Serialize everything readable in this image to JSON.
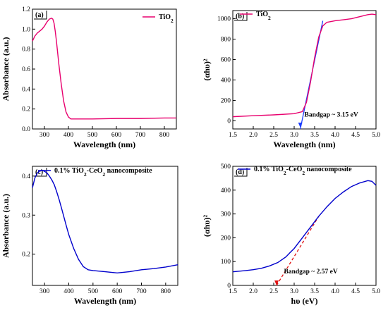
{
  "chart_data": [
    {
      "panel": "(a)",
      "type": "line",
      "xlabel": "Wavelength (nm)",
      "ylabel": "Absorbance (a.u.)",
      "xlim": [
        250,
        850
      ],
      "ylim": [
        0.0,
        1.2
      ],
      "xticks": [
        "300",
        "400",
        "500",
        "600",
        "700",
        "800"
      ],
      "yticks": [
        "0.0",
        "0.2",
        "0.4",
        "0.6",
        "0.8",
        "1.0",
        "1.2"
      ],
      "legend": "top-right",
      "series": [
        {
          "name": "TiO₂",
          "color": "#e8006e",
          "x": [
            250,
            260,
            270,
            280,
            290,
            300,
            310,
            320,
            330,
            335,
            340,
            345,
            350,
            360,
            370,
            380,
            390,
            400,
            410,
            420,
            440,
            460,
            500,
            600,
            700,
            800,
            850
          ],
          "y": [
            0.88,
            0.93,
            0.96,
            0.98,
            1.0,
            1.03,
            1.07,
            1.1,
            1.11,
            1.1,
            1.06,
            0.98,
            0.88,
            0.65,
            0.45,
            0.28,
            0.17,
            0.12,
            0.1,
            0.1,
            0.1,
            0.1,
            0.1,
            0.105,
            0.105,
            0.11,
            0.11
          ]
        }
      ]
    },
    {
      "panel": "(b)",
      "type": "line",
      "xlabel": "Wavelength (nm)",
      "ylabel": "(αhυ)²",
      "xlim": [
        1.5,
        5.0
      ],
      "ylim": [
        -80,
        1080
      ],
      "xticks": [
        "1.5",
        "2.0",
        "2.5",
        "3.0",
        "3.5",
        "4.0",
        "4.5",
        "5.0"
      ],
      "yticks": [
        "0",
        "200",
        "400",
        "600",
        "800",
        "1000"
      ],
      "legend": "top-left",
      "annotation": "Bandgap ~ 3.15 eV",
      "tangent": {
        "x": [
          3.15,
          3.7
        ],
        "y": [
          -80,
          980
        ]
      },
      "series": [
        {
          "name": "TiO₂",
          "color": "#e8006e",
          "x": [
            1.5,
            2.0,
            2.5,
            3.0,
            3.2,
            3.3,
            3.4,
            3.5,
            3.6,
            3.7,
            3.8,
            4.0,
            4.2,
            4.4,
            4.6,
            4.8,
            4.9,
            5.0
          ],
          "y": [
            40,
            50,
            58,
            70,
            90,
            180,
            380,
            620,
            820,
            930,
            965,
            980,
            990,
            1000,
            1020,
            1040,
            1045,
            1040
          ]
        }
      ]
    },
    {
      "panel": "(c)",
      "type": "line",
      "xlabel": "Wavelength (nm)",
      "ylabel": "Absorbance (a.u.)",
      "xlim": [
        250,
        850
      ],
      "ylim": [
        0.12,
        0.425
      ],
      "xticks": [
        "300",
        "400",
        "500",
        "600",
        "700",
        "800"
      ],
      "yticks": [
        "0.2",
        "0.3",
        "0.4"
      ],
      "legend": "top-left",
      "series": [
        {
          "name": "0.1% TiO₂-CeO₂ nanocomposite",
          "color": "#0000cc",
          "x": [
            250,
            260,
            270,
            280,
            290,
            300,
            310,
            320,
            330,
            340,
            350,
            360,
            370,
            380,
            390,
            400,
            420,
            440,
            460,
            480,
            500,
            550,
            600,
            650,
            700,
            750,
            800,
            850
          ],
          "y": [
            0.37,
            0.395,
            0.408,
            0.413,
            0.415,
            0.412,
            0.408,
            0.4,
            0.39,
            0.378,
            0.36,
            0.34,
            0.318,
            0.295,
            0.272,
            0.25,
            0.215,
            0.187,
            0.168,
            0.16,
            0.158,
            0.155,
            0.152,
            0.155,
            0.16,
            0.163,
            0.167,
            0.173
          ]
        }
      ]
    },
    {
      "panel": "(d)",
      "type": "line",
      "xlabel": "hυ (eV)",
      "ylabel": "(αhυ)²",
      "xlim": [
        1.5,
        5.0
      ],
      "ylim": [
        0,
        500
      ],
      "xticks": [
        "1.5",
        "2.0",
        "2.5",
        "3.0",
        "3.5",
        "4.0",
        "4.5",
        "5.0"
      ],
      "yticks": [
        "0",
        "100",
        "200",
        "300",
        "400",
        "500"
      ],
      "legend": "top-left",
      "annotation": "Bandgap ~ 2.57 eV",
      "tangent": {
        "x": [
          2.57,
          3.6
        ],
        "y": [
          0,
          290
        ]
      },
      "series": [
        {
          "name": "0.1% TiO₂-CeO₂ nanocomposite",
          "color": "#0000cc",
          "x": [
            1.5,
            1.8,
            2.0,
            2.2,
            2.4,
            2.6,
            2.8,
            2.9,
            3.0,
            3.2,
            3.4,
            3.6,
            3.8,
            4.0,
            4.2,
            4.4,
            4.6,
            4.8,
            4.9,
            5.0
          ],
          "y": [
            57,
            62,
            66,
            72,
            82,
            96,
            120,
            138,
            155,
            200,
            245,
            290,
            330,
            365,
            392,
            415,
            430,
            440,
            437,
            420
          ]
        }
      ]
    }
  ]
}
